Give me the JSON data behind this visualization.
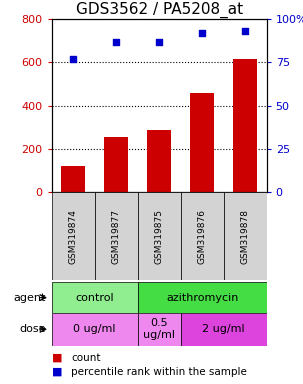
{
  "title": "GDS3562 / PA5208_at",
  "samples": [
    "GSM319874",
    "GSM319877",
    "GSM319875",
    "GSM319876",
    "GSM319878"
  ],
  "counts": [
    120,
    255,
    285,
    460,
    615
  ],
  "percentiles": [
    77,
    87,
    87,
    92,
    93
  ],
  "bar_color": "#cc0000",
  "dot_color": "#0000cc",
  "left_ylim": [
    0,
    800
  ],
  "right_ylim": [
    0,
    100
  ],
  "left_yticks": [
    0,
    200,
    400,
    600,
    800
  ],
  "right_yticks": [
    0,
    25,
    50,
    75,
    100
  ],
  "right_yticklabels": [
    "0",
    "25",
    "50",
    "75",
    "100%"
  ],
  "agent_labels": [
    {
      "label": "control",
      "span": [
        0,
        2
      ],
      "color": "#90ee90"
    },
    {
      "label": "azithromycin",
      "span": [
        2,
        5
      ],
      "color": "#44dd44"
    }
  ],
  "dose_labels": [
    {
      "label": "0 ug/ml",
      "span": [
        0,
        2
      ],
      "color": "#ee88ee"
    },
    {
      "label": "0.5\nug/ml",
      "span": [
        2,
        3
      ],
      "color": "#ee88ee"
    },
    {
      "label": "2 ug/ml",
      "span": [
        3,
        5
      ],
      "color": "#dd44dd"
    }
  ],
  "legend_items": [
    {
      "color": "#cc0000",
      "label": "count"
    },
    {
      "color": "#0000cc",
      "label": "percentile rank within the sample"
    }
  ],
  "title_fontsize": 11,
  "tick_fontsize": 8,
  "sample_fontsize": 6.5,
  "row_fontsize": 8,
  "legend_fontsize": 7.5
}
